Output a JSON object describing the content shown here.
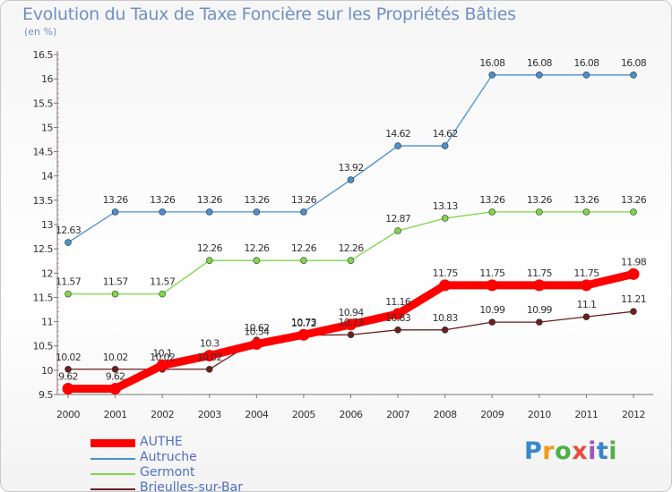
{
  "chart_data": {
    "type": "line",
    "title": "Evolution du Taux de Taxe Foncière sur les Propriétés Bâties",
    "subtitle": "(en %)",
    "categories": [
      "2000",
      "2001",
      "2002",
      "2003",
      "2004",
      "2005",
      "2006",
      "2007",
      "2008",
      "2009",
      "2010",
      "2011",
      "2012"
    ],
    "ylim": [
      9.5,
      16.5
    ],
    "yticks": [
      "9.5",
      "10",
      "10.5",
      "11",
      "11.5",
      "12",
      "12.5",
      "13",
      "13.5",
      "14",
      "14.5",
      "15",
      "15.5",
      "16",
      "16.5"
    ],
    "grid": false,
    "legend_position": "bottom-left",
    "series": [
      {
        "name": "AUTHE",
        "color": "#ff0000",
        "values": [
          9.62,
          9.62,
          10.1,
          10.3,
          10.54,
          10.73,
          10.94,
          11.16,
          11.75,
          11.75,
          11.75,
          11.75,
          11.98
        ]
      },
      {
        "name": "Autruche",
        "color": "#4a8fd0",
        "values": [
          12.63,
          13.26,
          13.26,
          13.26,
          13.26,
          13.26,
          13.92,
          14.62,
          14.62,
          16.08,
          16.08,
          16.08,
          16.08
        ]
      },
      {
        "name": "Germont",
        "color": "#7fd64a",
        "values": [
          11.57,
          11.57,
          11.57,
          12.26,
          12.26,
          12.26,
          12.26,
          12.87,
          13.13,
          13.26,
          13.26,
          13.26,
          13.26
        ]
      },
      {
        "name": "Brieulles-sur-Bar",
        "color": "#6b1f1f",
        "values": [
          10.02,
          10.02,
          10.02,
          10.02,
          10.62,
          10.72,
          10.73,
          10.83,
          10.83,
          10.99,
          10.99,
          11.1,
          11.21
        ]
      }
    ]
  },
  "brand": {
    "letters": [
      "P",
      "r",
      "o",
      "x",
      "i",
      "t",
      "i"
    ]
  }
}
